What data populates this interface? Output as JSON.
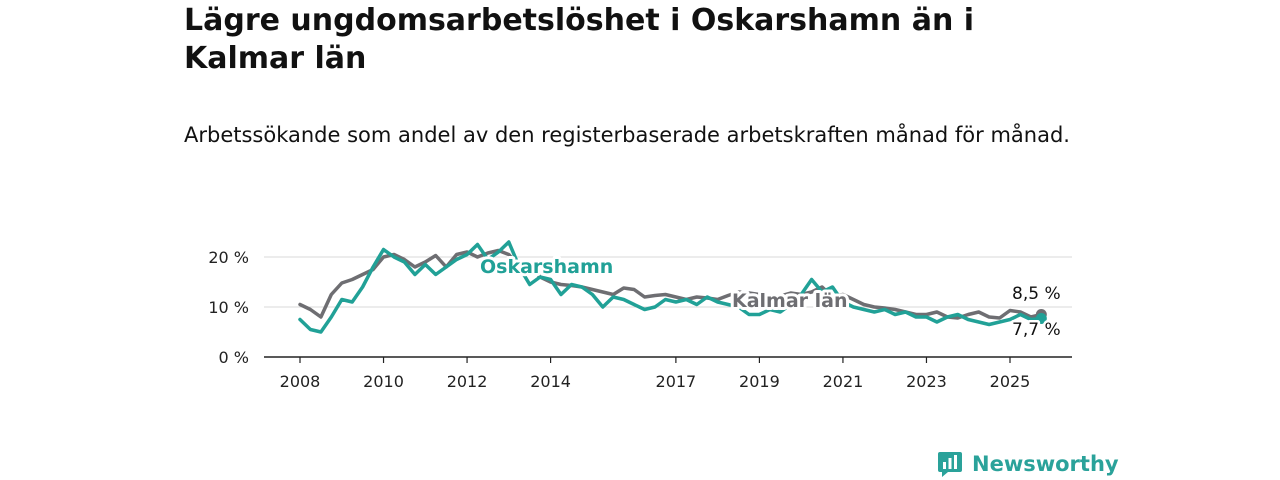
{
  "title": "Lägre ungdomsarbetslöshet i Oskarshamn än i Kalmar län",
  "subtitle": "Arbetssökande som andel av den registerbaserade arbetskraften månad för månad.",
  "brand": {
    "name": "Newsworthy",
    "icon": "bar-chart-speech-bubble-icon",
    "color": "#2aa29a"
  },
  "chart_data": {
    "type": "line",
    "ylim": [
      0,
      25
    ],
    "xlim": [
      2008,
      2026.5
    ],
    "yticks": [
      0,
      10,
      20
    ],
    "ytick_labels": [
      "0 %",
      "10 %",
      "20 %"
    ],
    "xticks": [
      2008,
      2010,
      2012,
      2014,
      2017,
      2019,
      2021,
      2023,
      2025
    ],
    "xtick_labels": [
      "2008",
      "2010",
      "2012",
      "2014",
      "2017",
      "2019",
      "2021",
      "2023",
      "2025"
    ],
    "grid": true,
    "end_labels": [
      "8,5 %",
      "7,7 %"
    ],
    "series": [
      {
        "name": "Kalmar län",
        "color": "#6e6e72",
        "end_value": 8.5,
        "x": [
          2008.0,
          2008.25,
          2008.5,
          2008.75,
          2009.0,
          2009.25,
          2009.5,
          2009.75,
          2010.0,
          2010.25,
          2010.5,
          2010.75,
          2011.0,
          2011.25,
          2011.5,
          2011.75,
          2012.0,
          2012.25,
          2012.5,
          2012.75,
          2013.0,
          2013.25,
          2013.5,
          2013.75,
          2014.0,
          2014.25,
          2014.5,
          2014.75,
          2015.0,
          2015.25,
          2015.5,
          2015.75,
          2016.0,
          2016.25,
          2016.5,
          2016.75,
          2017.0,
          2017.25,
          2017.5,
          2017.75,
          2018.0,
          2018.25,
          2018.5,
          2018.75,
          2019.0,
          2019.25,
          2019.5,
          2019.75,
          2020.0,
          2020.25,
          2020.5,
          2020.75,
          2021.0,
          2021.25,
          2021.5,
          2021.75,
          2022.0,
          2022.25,
          2022.5,
          2022.75,
          2023.0,
          2023.25,
          2023.5,
          2023.75,
          2024.0,
          2024.25,
          2024.5,
          2024.75,
          2025.0,
          2025.25,
          2025.5,
          2025.75
        ],
        "values": [
          10.5,
          9.5,
          8.0,
          12.5,
          14.8,
          15.5,
          16.5,
          17.5,
          20.0,
          20.5,
          19.5,
          18.0,
          19.0,
          20.3,
          18.0,
          20.5,
          21.0,
          20.0,
          20.8,
          21.3,
          20.5,
          18.0,
          18.5,
          16.0,
          15.0,
          14.5,
          14.3,
          14.0,
          13.5,
          13.0,
          12.5,
          13.8,
          13.5,
          12.0,
          12.3,
          12.5,
          12.0,
          11.5,
          12.0,
          11.8,
          11.5,
          12.3,
          13.0,
          12.8,
          12.5,
          12.0,
          12.2,
          12.8,
          12.5,
          13.0,
          14.0,
          12.0,
          12.5,
          11.5,
          10.5,
          10.0,
          9.8,
          9.5,
          9.0,
          8.5,
          8.5,
          9.0,
          8.0,
          7.8,
          8.5,
          9.0,
          8.0,
          7.8,
          9.3,
          9.0,
          8.0,
          8.5
        ]
      },
      {
        "name": "Oskarshamn",
        "color": "#21a197",
        "end_value": 7.7,
        "x": [
          2008.0,
          2008.25,
          2008.5,
          2008.75,
          2009.0,
          2009.25,
          2009.5,
          2009.75,
          2010.0,
          2010.25,
          2010.5,
          2010.75,
          2011.0,
          2011.25,
          2011.5,
          2011.75,
          2012.0,
          2012.25,
          2012.5,
          2012.75,
          2013.0,
          2013.25,
          2013.5,
          2013.75,
          2014.0,
          2014.25,
          2014.5,
          2014.75,
          2015.0,
          2015.25,
          2015.5,
          2015.75,
          2016.0,
          2016.25,
          2016.5,
          2016.75,
          2017.0,
          2017.25,
          2017.5,
          2017.75,
          2018.0,
          2018.25,
          2018.5,
          2018.75,
          2019.0,
          2019.25,
          2019.5,
          2019.75,
          2020.0,
          2020.25,
          2020.5,
          2020.75,
          2021.0,
          2021.25,
          2021.5,
          2021.75,
          2022.0,
          2022.25,
          2022.5,
          2022.75,
          2023.0,
          2023.25,
          2023.5,
          2023.75,
          2024.0,
          2024.25,
          2024.5,
          2024.75,
          2025.0,
          2025.25,
          2025.5,
          2025.75
        ],
        "values": [
          7.5,
          5.5,
          5.0,
          8.0,
          11.5,
          11.0,
          14.0,
          18.0,
          21.5,
          20.0,
          19.0,
          16.5,
          18.5,
          16.5,
          18.0,
          19.5,
          20.5,
          22.5,
          19.5,
          21.0,
          23.0,
          18.0,
          14.5,
          16.0,
          15.5,
          12.5,
          14.5,
          14.0,
          12.5,
          10.0,
          12.0,
          11.5,
          10.5,
          9.5,
          10.0,
          11.5,
          11.0,
          11.5,
          10.5,
          12.0,
          11.0,
          10.5,
          10.0,
          8.5,
          8.5,
          9.5,
          9.0,
          10.5,
          12.5,
          15.5,
          13.0,
          14.0,
          11.0,
          10.0,
          9.5,
          9.0,
          9.5,
          8.5,
          9.0,
          8.0,
          8.0,
          7.0,
          8.0,
          8.5,
          7.5,
          7.0,
          6.5,
          7.0,
          7.5,
          8.5,
          7.5,
          7.7
        ]
      }
    ]
  }
}
